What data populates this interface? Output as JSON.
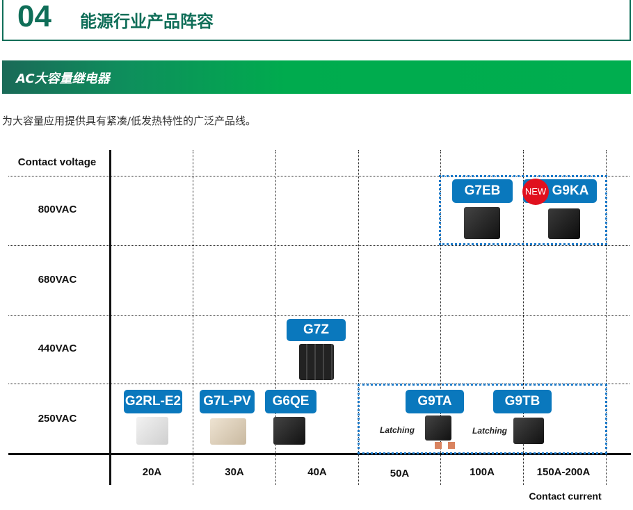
{
  "header": {
    "number": "04",
    "title": "能源行业产品阵容"
  },
  "section": {
    "title": "AC大容量继电器"
  },
  "description": "为大容量应用提供具有紧凑/低发热特性的广泛产品线。",
  "chart": {
    "y_axis_label": "Contact voltage",
    "x_axis_label": "Contact current",
    "voltages": [
      "800VAC",
      "680VAC",
      "440VAC",
      "250VAC"
    ],
    "currents": [
      "20A",
      "30A",
      "40A",
      "50A",
      "100A",
      "150A-200A"
    ],
    "products": [
      {
        "name": "G7EB",
        "voltage": "800VAC",
        "current": "100A"
      },
      {
        "name": "G9KA",
        "voltage": "800VAC",
        "current": "150A-200A",
        "badge": "NEW"
      },
      {
        "name": "G7Z",
        "voltage": "440VAC",
        "current": "40A"
      },
      {
        "name": "G2RL-E2",
        "voltage": "250VAC",
        "current": "20A"
      },
      {
        "name": "G7L-PV",
        "voltage": "250VAC",
        "current": "30A"
      },
      {
        "name": "G6QE",
        "voltage": "250VAC",
        "current": "40A"
      },
      {
        "name": "G9TA",
        "voltage": "250VAC",
        "current": "50A",
        "note": "Latching"
      },
      {
        "name": "G9TB",
        "voltage": "250VAC",
        "current": "100A",
        "note": "Latching"
      }
    ],
    "colors": {
      "badge": "#0a78bd",
      "new": "#e0101e",
      "accent": "#0f6e58",
      "highlight_box": "#1a78c8"
    }
  }
}
